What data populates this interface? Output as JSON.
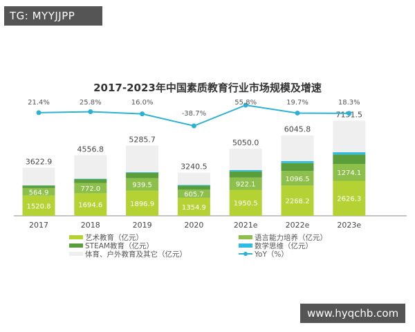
{
  "watermarks": {
    "top_left": "TG: MYYJJPP",
    "bottom_right": "www.hyqchb.com"
  },
  "chart_data": {
    "type": "bar",
    "stacked": true,
    "title": "2017-2023年中国素质教育行业市场规模及增速",
    "categories": [
      "2017",
      "2018",
      "2019",
      "2020",
      "2021e",
      "2022e",
      "2023e"
    ],
    "series": [
      {
        "name": "艺术教育（亿元）",
        "color": "#b4d234",
        "values": [
          1520.8,
          1694.6,
          1896.9,
          1354.9,
          1950.5,
          2268.2,
          2626.3
        ]
      },
      {
        "name": "语言能力培养（亿元）",
        "color": "#8dc04b",
        "values": [
          564.9,
          772.0,
          939.5,
          605.7,
          922.1,
          1096.5,
          1274.1
        ]
      },
      {
        "name": "STEAM教育（亿元）",
        "color": "#5a9e3b",
        "values": [
          190,
          290,
          400,
          300,
          470,
          600,
          710
        ]
      },
      {
        "name": "数学思维（亿元）",
        "color": "#2fbbe3",
        "values": [
          20,
          30,
          40,
          60,
          100,
          150,
          170
        ]
      },
      {
        "name": "体育、户外教育及其它（亿元）",
        "color": "#efefef",
        "values": [
          1327.2,
          1770.2,
          2009.3,
          919.9,
          1607.4,
          1931.1,
          2371.1
        ]
      }
    ],
    "totals": [
      3622.9,
      4556.8,
      5285.7,
      3240.5,
      5050.0,
      6045.8,
      7151.5
    ],
    "line": {
      "name": "YoY（%）",
      "color": "#2bb1d3",
      "values": [
        21.4,
        25.8,
        16.0,
        -38.7,
        55.8,
        19.7,
        18.3
      ],
      "labels": [
        "21.4%",
        "25.8%",
        "16.0%",
        "-38.7%",
        "55.8%",
        "19.7%",
        "18.3%"
      ]
    },
    "labeled_series": [
      0,
      1
    ],
    "legend": "bottom",
    "grid": false
  }
}
